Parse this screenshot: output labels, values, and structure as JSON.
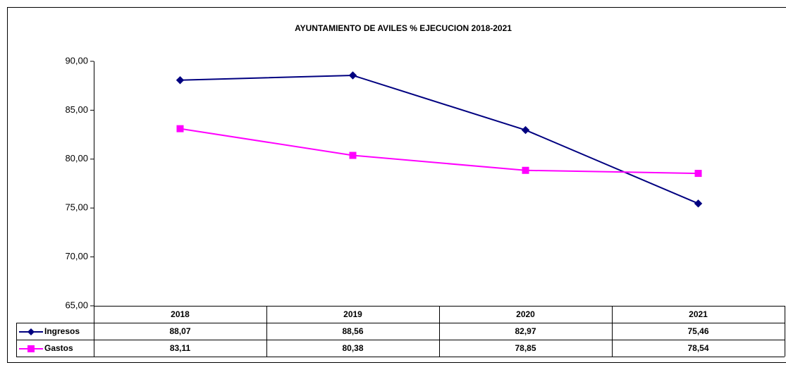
{
  "chart_data": {
    "type": "line",
    "title": "AYUNTAMIENTO DE AVILES % EJECUCION 2018-2021",
    "categories": [
      "2018",
      "2019",
      "2020",
      "2021"
    ],
    "series": [
      {
        "name": "Ingresos",
        "color": "#000080",
        "marker": "diamond",
        "values": [
          88.07,
          88.56,
          82.97,
          75.46
        ],
        "value_labels": [
          "88,07",
          "88,56",
          "82,97",
          "75,46"
        ]
      },
      {
        "name": "Gastos",
        "color": "#ff00ff",
        "marker": "square",
        "values": [
          83.11,
          80.38,
          78.85,
          78.54
        ],
        "value_labels": [
          "83,11",
          "80,38",
          "78,85",
          "78,54"
        ]
      }
    ],
    "ylim": [
      65,
      90
    ],
    "yticks": [
      {
        "value": 65,
        "label": "65,00"
      },
      {
        "value": 70,
        "label": "70,00"
      },
      {
        "value": 75,
        "label": "75,00"
      },
      {
        "value": 80,
        "label": "80,00"
      },
      {
        "value": 85,
        "label": "85,00"
      },
      {
        "value": 90,
        "label": "90,00"
      }
    ],
    "grid": false,
    "legend": "table"
  }
}
